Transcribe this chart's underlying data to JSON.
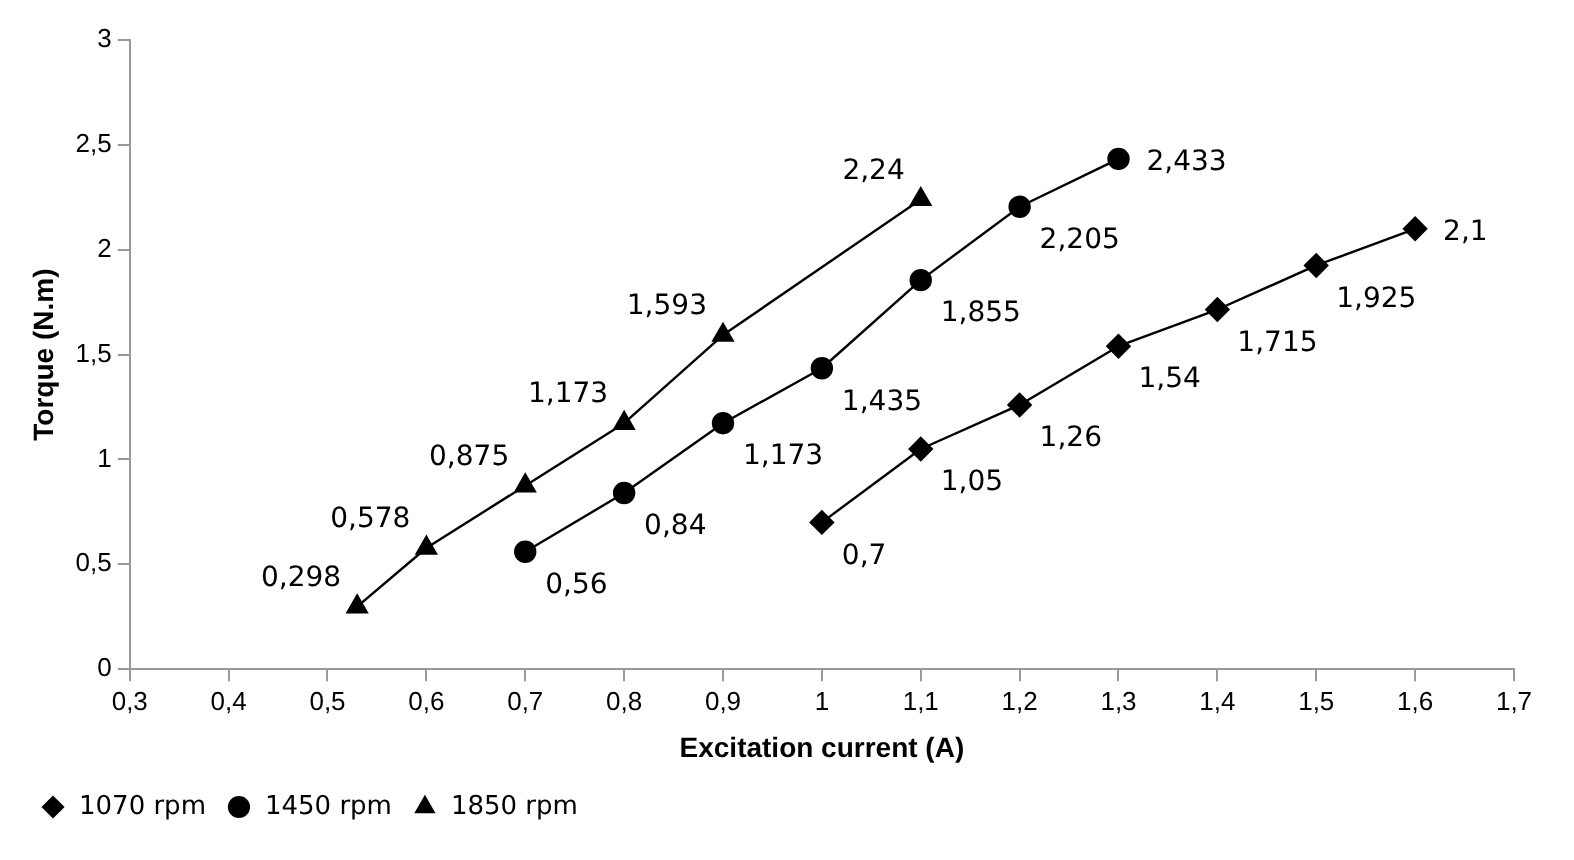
{
  "chart_data": {
    "type": "line",
    "xlabel": "Excitation current (A)",
    "ylabel": "Torque (N.m)",
    "xlim": [
      0.3,
      1.7
    ],
    "xticks": [
      {
        "value": 0.3,
        "label": "0,3"
      },
      {
        "value": 0.4,
        "label": "0,4"
      },
      {
        "value": 0.5,
        "label": "0,5"
      },
      {
        "value": 0.6,
        "label": "0,6"
      },
      {
        "value": 0.7,
        "label": "0,7"
      },
      {
        "value": 0.8,
        "label": "0,8"
      },
      {
        "value": 0.9,
        "label": "0,9"
      },
      {
        "value": 1,
        "label": "1"
      },
      {
        "value": 1.1,
        "label": "1,1"
      },
      {
        "value": 1.2,
        "label": "1,2"
      },
      {
        "value": 1.3,
        "label": "1,3"
      },
      {
        "value": 1.4,
        "label": "1,4"
      },
      {
        "value": 1.5,
        "label": "1,5"
      },
      {
        "value": 1.6,
        "label": "1,6"
      },
      {
        "value": 1.7,
        "label": "1,7"
      }
    ],
    "ylim": [
      0,
      3
    ],
    "yticks": [
      0,
      {
        "value": 0.5,
        "label": "0,5"
      },
      1,
      {
        "value": 1.5,
        "label": "1,5"
      },
      2,
      {
        "value": 2.5,
        "label": "2,5"
      },
      3
    ],
    "grid": false,
    "legend": "bottom left",
    "line_style": "solid",
    "series": [
      {
        "name": "1070 rpm",
        "color": "#000000",
        "marker": "diamond",
        "x": [
          1,
          1.1,
          1.2,
          1.3,
          1.4,
          1.5,
          1.6
        ],
        "values": [
          0.7,
          1.05,
          1.26,
          1.54,
          1.715,
          1.925,
          2.1
        ],
        "value_labels": [
          "0,7",
          "1,05",
          "1,26",
          "1,54",
          "1,715",
          "1,925",
          "2,1"
        ]
      },
      {
        "name": "1450 rpm",
        "color": "#000000",
        "marker": "circle",
        "x": [
          0.7,
          0.8,
          0.9,
          1,
          1.1,
          1.2,
          1.3
        ],
        "values": [
          0.56,
          0.84,
          1.173,
          1.435,
          1.855,
          2.205,
          2.433
        ],
        "value_labels": [
          "0,56",
          "0,84",
          "1,173",
          "1,435",
          "1,855",
          "2,205",
          "2,433"
        ]
      },
      {
        "name": "1850 rpm",
        "color": "#000000",
        "marker": "triangle",
        "x": [
          0.53,
          0.6,
          0.7,
          0.8,
          0.9,
          1.1
        ],
        "values": [
          0.298,
          0.578,
          0.875,
          1.173,
          1.593,
          2.24
        ],
        "value_labels": [
          "0,298",
          "0,578",
          "0,875",
          "1,173",
          "1,593",
          "2,24"
        ]
      }
    ]
  }
}
